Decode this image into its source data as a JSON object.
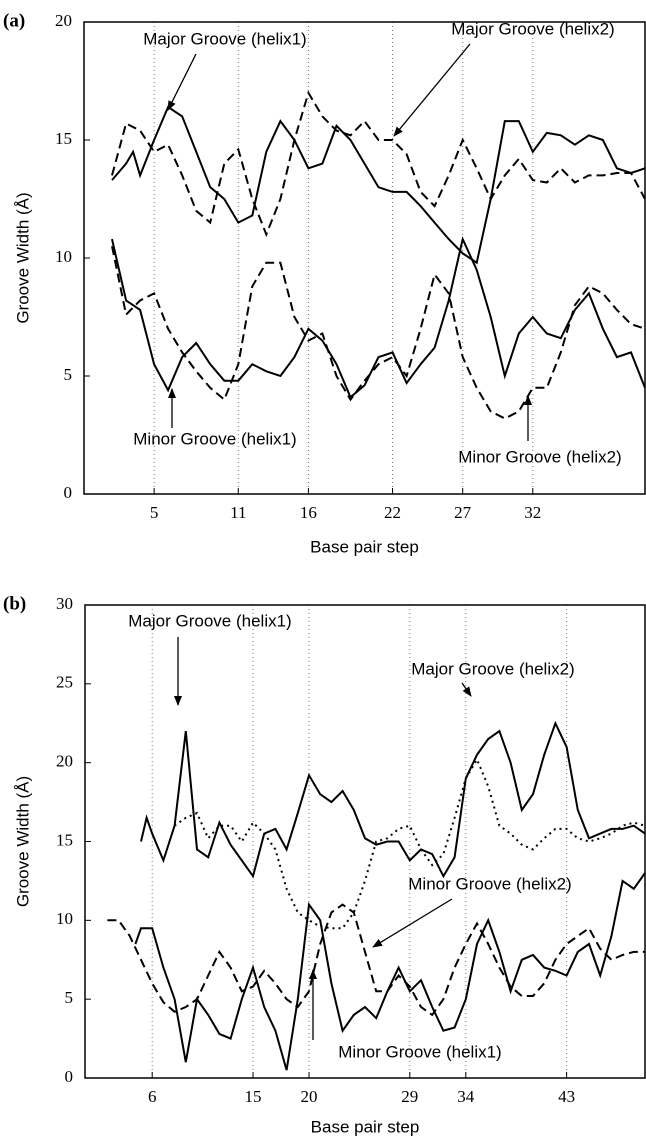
{
  "chart_data": [
    {
      "type": "line",
      "panel_label": "(a)",
      "y_label": "Groove Width (Å)",
      "x_label": "Base pair step",
      "xlim": [
        0,
        40
      ],
      "ylim": [
        0,
        20
      ],
      "xticks": [
        5,
        11,
        16,
        22,
        27,
        32
      ],
      "yticks": [
        0,
        5,
        10,
        15,
        20
      ],
      "grid": "x",
      "series": [
        {
          "name": "Major Groove (helix1)",
          "color": "#000000",
          "dash": "solid",
          "x": [
            2,
            3,
            3.5,
            4,
            5,
            6,
            7,
            8,
            9,
            10,
            11,
            12,
            13,
            14,
            15,
            16,
            17,
            18,
            19,
            20,
            21,
            22,
            23,
            24,
            25,
            26,
            27,
            28,
            29,
            30,
            31,
            32,
            33,
            34,
            35,
            36,
            37,
            38,
            39,
            40
          ],
          "values": [
            13.3,
            14.0,
            14.5,
            13.5,
            15.0,
            16.4,
            16.0,
            14.5,
            13.0,
            12.5,
            11.5,
            11.8,
            14.5,
            15.8,
            15.0,
            13.8,
            14.0,
            15.6,
            15.0,
            14.0,
            13.0,
            12.8,
            12.8,
            12.2,
            11.5,
            10.8,
            10.2,
            9.8,
            12.5,
            15.8,
            15.8,
            14.5,
            15.3,
            15.2,
            14.8,
            15.2,
            15.0,
            13.8,
            13.6,
            13.8
          ]
        },
        {
          "name": "Major Groove (helix2)",
          "color": "#000000",
          "dash": "dashed",
          "x": [
            2,
            3,
            4,
            5,
            6,
            7,
            8,
            9,
            10,
            11,
            12,
            13,
            14,
            15,
            16,
            17,
            18,
            19,
            20,
            21,
            22,
            23,
            24,
            25,
            26,
            27,
            28,
            29,
            30,
            31,
            32,
            33,
            34,
            35,
            36,
            37,
            38,
            39,
            40
          ],
          "values": [
            13.5,
            15.7,
            15.4,
            14.5,
            14.8,
            13.5,
            12.0,
            11.5,
            14.0,
            14.6,
            12.5,
            11.0,
            12.5,
            15.0,
            17.0,
            16.0,
            15.4,
            15.2,
            15.8,
            15.0,
            15.0,
            14.4,
            12.8,
            12.2,
            13.5,
            15.0,
            13.8,
            12.5,
            13.5,
            14.2,
            13.3,
            13.2,
            13.8,
            13.2,
            13.5,
            13.5,
            13.6,
            13.6,
            12.5
          ]
        },
        {
          "name": "Minor Groove (helix1)",
          "color": "#000000",
          "dash": "solid",
          "x": [
            2,
            3,
            4,
            5,
            6,
            7,
            8,
            9,
            10,
            11,
            12,
            13,
            14,
            15,
            16,
            17,
            18,
            19,
            20,
            21,
            22,
            23,
            24,
            25,
            26,
            27,
            28,
            29,
            30,
            31,
            32,
            33,
            34,
            35,
            36,
            37,
            38,
            39,
            40
          ],
          "values": [
            10.8,
            8.2,
            7.8,
            5.5,
            4.4,
            5.8,
            6.4,
            5.5,
            4.8,
            4.8,
            5.5,
            5.2,
            5.0,
            5.8,
            7.0,
            6.5,
            5.5,
            4.1,
            4.6,
            5.8,
            6.0,
            4.7,
            5.5,
            6.2,
            8.2,
            10.8,
            9.5,
            7.5,
            5.0,
            6.8,
            7.5,
            6.8,
            6.6,
            7.8,
            8.5,
            7.0,
            5.8,
            6.0,
            4.5
          ]
        },
        {
          "name": "Minor Groove (helix2)",
          "color": "#000000",
          "dash": "dashed",
          "x": [
            2,
            3,
            4,
            5,
            6,
            7,
            8,
            9,
            10,
            11,
            12,
            13,
            14,
            15,
            16,
            17,
            18,
            19,
            20,
            21,
            22,
            23,
            24,
            25,
            26,
            27,
            28,
            29,
            30,
            31,
            32,
            33,
            34,
            35,
            36,
            37,
            38,
            39,
            40
          ],
          "values": [
            10.5,
            7.6,
            8.2,
            8.5,
            7.0,
            6.0,
            5.2,
            4.5,
            4.0,
            5.5,
            8.8,
            9.8,
            9.8,
            7.5,
            6.5,
            6.8,
            5.0,
            4.0,
            4.8,
            5.5,
            5.8,
            5.0,
            7.0,
            9.3,
            8.5,
            5.8,
            4.5,
            3.5,
            3.2,
            3.5,
            4.5,
            4.5,
            6.0,
            8.0,
            8.8,
            8.5,
            7.8,
            7.2,
            7.0
          ]
        }
      ]
    },
    {
      "type": "line",
      "panel_label": "(b)",
      "y_label": "Groove Width (Å)",
      "x_label": "Base pair step",
      "xlim": [
        0,
        50
      ],
      "ylim": [
        0,
        30
      ],
      "xticks": [
        6,
        15,
        20,
        29,
        34,
        43
      ],
      "yticks": [
        0,
        5,
        10,
        15,
        20,
        25,
        30
      ],
      "grid": "x",
      "series": [
        {
          "name": "Major Groove (helix1)",
          "color": "#000000",
          "dash": "solid",
          "x": [
            5,
            5.5,
            6,
            7,
            8,
            9,
            10,
            11,
            12,
            13,
            14,
            15,
            16,
            17,
            18,
            19,
            20,
            21,
            22,
            23,
            24,
            25,
            26,
            27,
            28,
            29,
            30,
            31,
            32,
            33,
            34,
            35,
            36,
            37,
            38,
            39,
            40,
            41,
            42,
            43,
            44,
            45,
            46,
            47,
            48,
            49,
            50
          ],
          "values": [
            15.0,
            16.5,
            15.5,
            13.8,
            16.0,
            22.0,
            14.5,
            14.0,
            16.2,
            14.8,
            13.8,
            12.8,
            15.5,
            15.8,
            14.5,
            16.8,
            19.2,
            18.0,
            17.5,
            18.2,
            17.0,
            15.2,
            14.8,
            15.0,
            15.0,
            13.8,
            14.5,
            14.2,
            12.8,
            14.0,
            19.0,
            20.5,
            21.5,
            22.0,
            20.0,
            17.0,
            18.0,
            20.5,
            22.5,
            21.0,
            17.0,
            15.2,
            15.5,
            15.8,
            15.8,
            16.0,
            15.5
          ]
        },
        {
          "name": "Major Groove (helix2)",
          "color": "#000000",
          "dash": "dotted",
          "x": [
            8,
            9,
            10,
            11,
            12,
            13,
            14,
            15,
            16,
            17,
            18,
            19,
            20,
            21,
            22,
            23,
            24,
            25,
            26,
            27,
            28,
            29,
            30,
            31,
            32,
            33,
            34,
            35,
            36,
            37,
            38,
            39,
            40,
            41,
            42,
            43,
            44,
            45,
            46,
            47,
            48,
            49,
            50
          ],
          "values": [
            16.0,
            16.5,
            16.8,
            15.2,
            16.0,
            16.0,
            15.0,
            16.2,
            15.5,
            14.5,
            12.0,
            10.5,
            10.0,
            9.6,
            9.5,
            9.5,
            10.5,
            12.5,
            15.0,
            15.2,
            15.8,
            16.0,
            14.5,
            13.5,
            14.2,
            16.5,
            19.0,
            20.2,
            18.5,
            16.0,
            15.5,
            14.8,
            14.5,
            15.2,
            15.8,
            15.8,
            15.2,
            15.0,
            15.2,
            15.5,
            16.0,
            16.2,
            16.0
          ]
        },
        {
          "name": "Minor Groove (helix2)",
          "color": "#000000",
          "dash": "dashed",
          "x": [
            2,
            3,
            4,
            5,
            6,
            7,
            8,
            9,
            10,
            11,
            12,
            13,
            14,
            15,
            16,
            17,
            18,
            19,
            20,
            21,
            22,
            23,
            24,
            25,
            26,
            27,
            28,
            29,
            30,
            31,
            32,
            33,
            34,
            35,
            36,
            37,
            38,
            39,
            40,
            41,
            42,
            43,
            44,
            45,
            46,
            47,
            48,
            49,
            50
          ],
          "values": [
            10.0,
            10.0,
            9.0,
            7.5,
            6.0,
            4.8,
            4.2,
            4.5,
            5.0,
            6.5,
            8.0,
            7.0,
            5.5,
            5.8,
            6.8,
            6.0,
            5.0,
            4.5,
            5.5,
            8.5,
            10.5,
            11.0,
            10.5,
            8.0,
            5.5,
            5.5,
            6.5,
            5.8,
            4.5,
            4.0,
            5.0,
            7.0,
            8.5,
            9.8,
            8.5,
            7.0,
            5.8,
            5.2,
            5.2,
            6.0,
            7.5,
            8.5,
            9.0,
            9.5,
            8.2,
            7.5,
            7.8,
            8.0,
            8.0
          ]
        },
        {
          "name": "Minor Groove (helix1)",
          "color": "#000000",
          "dash": "solid",
          "x": [
            4.5,
            5,
            6,
            7,
            8,
            9,
            10,
            11,
            12,
            13,
            14,
            15,
            16,
            17,
            18,
            19,
            20,
            21,
            22,
            23,
            24,
            25,
            26,
            27,
            28,
            29,
            30,
            31,
            32,
            33,
            34,
            35,
            36,
            37,
            38,
            39,
            40,
            41,
            42,
            43,
            44,
            45,
            46,
            47,
            48,
            49,
            50
          ],
          "values": [
            8.5,
            9.5,
            9.5,
            7.0,
            5.0,
            1.0,
            5.0,
            4.0,
            2.8,
            2.5,
            5.0,
            7.0,
            4.5,
            3.0,
            0.5,
            5.0,
            11.0,
            10.0,
            6.0,
            3.0,
            4.0,
            4.5,
            3.8,
            5.5,
            7.0,
            5.5,
            6.2,
            4.5,
            3.0,
            3.2,
            5.0,
            8.5,
            10.0,
            8.0,
            5.5,
            7.5,
            7.8,
            7.0,
            6.8,
            6.5,
            8.0,
            8.5,
            6.5,
            9.0,
            12.5,
            12.0,
            13.0
          ]
        }
      ]
    }
  ]
}
